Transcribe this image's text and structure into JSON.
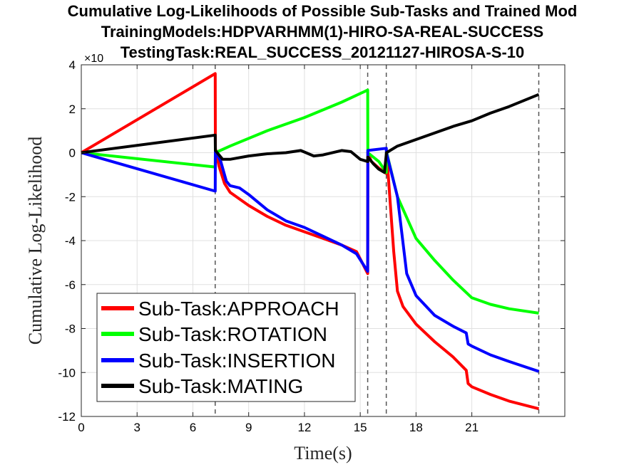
{
  "chart_data": {
    "type": "line",
    "title_lines": [
      "Cumulative Log-Likelihoods of Possible Sub-Tasks and Trained Mod",
      "TrainingModels:HDPVARHMM(1)-HIRO-SA-REAL-SUCCESS",
      "TestingTask:REAL_SUCCESS_20121127-HIROSA-S-10"
    ],
    "xlabel": "Time(s)",
    "ylabel": "Cumulative Log-Likelihood",
    "y_exponent_label": "×10",
    "xlim": [
      0,
      26
    ],
    "ylim": [
      -12,
      4
    ],
    "x_ticks": [
      0,
      3,
      6,
      9,
      12,
      15,
      18,
      21
    ],
    "y_ticks": [
      -12,
      -10,
      -8,
      -6,
      -4,
      -2,
      0,
      2,
      4
    ],
    "grid": true,
    "legend_position": "lower-left",
    "vertical_markers": [
      7.2,
      15.4,
      16.4,
      24.6
    ],
    "series": [
      {
        "name": "Sub-Task:APPROACH",
        "color": "#ff0000",
        "x": [
          0,
          7.2,
          7.21,
          7.4,
          7.7,
          8.0,
          9.0,
          10.0,
          11.0,
          12.0,
          13.0,
          14.0,
          14.8,
          15.1,
          15.4,
          15.41,
          15.6,
          16.0,
          16.4,
          16.41,
          16.8,
          17.0,
          17.3,
          18.0,
          19.0,
          20.0,
          20.7,
          20.8,
          21.0,
          22.0,
          23.0,
          24.6
        ],
        "y": [
          0,
          3.6,
          0.2,
          -0.6,
          -1.4,
          -1.8,
          -2.4,
          -2.9,
          -3.3,
          -3.6,
          -3.9,
          -4.2,
          -4.5,
          -5.0,
          -5.5,
          0.0,
          -0.4,
          -0.7,
          -0.95,
          0.1,
          -4.5,
          -6.3,
          -7.0,
          -7.8,
          -8.6,
          -9.3,
          -9.9,
          -10.5,
          -10.65,
          -11.0,
          -11.3,
          -11.65
        ]
      },
      {
        "name": "Sub-Task:ROTATION",
        "color": "#00ff00",
        "x": [
          0,
          7.2,
          7.21,
          8.0,
          10.0,
          12.0,
          14.0,
          15.4,
          15.41,
          16.0,
          16.4,
          16.41,
          17.0,
          18.0,
          19.0,
          20.0,
          21.0,
          22.0,
          23.0,
          24.6
        ],
        "y": [
          0,
          -0.65,
          0.0,
          0.3,
          1.0,
          1.6,
          2.3,
          2.85,
          0.0,
          -0.4,
          -0.9,
          0.05,
          -2.0,
          -3.9,
          -4.9,
          -5.8,
          -6.6,
          -6.9,
          -7.1,
          -7.3
        ]
      },
      {
        "name": "Sub-Task:INSERTION",
        "color": "#0000ff",
        "x": [
          0,
          7.2,
          7.21,
          7.5,
          7.8,
          8.0,
          8.5,
          9.0,
          10.0,
          11.0,
          12.0,
          13.0,
          14.0,
          14.8,
          15.1,
          15.4,
          15.41,
          16.4,
          16.41,
          17.0,
          17.5,
          18.0,
          19.0,
          20.0,
          20.7,
          20.8,
          21.0,
          22.0,
          23.0,
          24.6
        ],
        "y": [
          0,
          -1.75,
          0.1,
          -0.4,
          -1.3,
          -1.5,
          -1.6,
          -1.9,
          -2.6,
          -3.1,
          -3.4,
          -3.8,
          -4.2,
          -4.6,
          -5.0,
          -5.4,
          0.1,
          0.2,
          0.0,
          -2.0,
          -5.5,
          -6.5,
          -7.4,
          -7.9,
          -8.2,
          -8.7,
          -8.8,
          -9.2,
          -9.5,
          -9.95
        ]
      },
      {
        "name": "Sub-Task:MATING",
        "color": "#000000",
        "x": [
          0,
          7.2,
          7.21,
          7.6,
          8.0,
          9.0,
          10.0,
          11.0,
          11.8,
          12.5,
          13.0,
          14.0,
          14.5,
          15.0,
          15.4,
          15.41,
          15.7,
          16.0,
          16.3,
          16.41,
          17.0,
          18.0,
          19.0,
          20.0,
          21.0,
          22.0,
          23.0,
          24.6
        ],
        "y": [
          0,
          0.8,
          0.1,
          -0.3,
          -0.3,
          -0.15,
          -0.05,
          0.0,
          0.1,
          -0.15,
          -0.1,
          0.1,
          0.05,
          -0.3,
          -0.4,
          -0.2,
          -0.5,
          -0.75,
          -0.9,
          0.0,
          0.3,
          0.6,
          0.9,
          1.2,
          1.45,
          1.8,
          2.1,
          2.65
        ]
      }
    ]
  }
}
